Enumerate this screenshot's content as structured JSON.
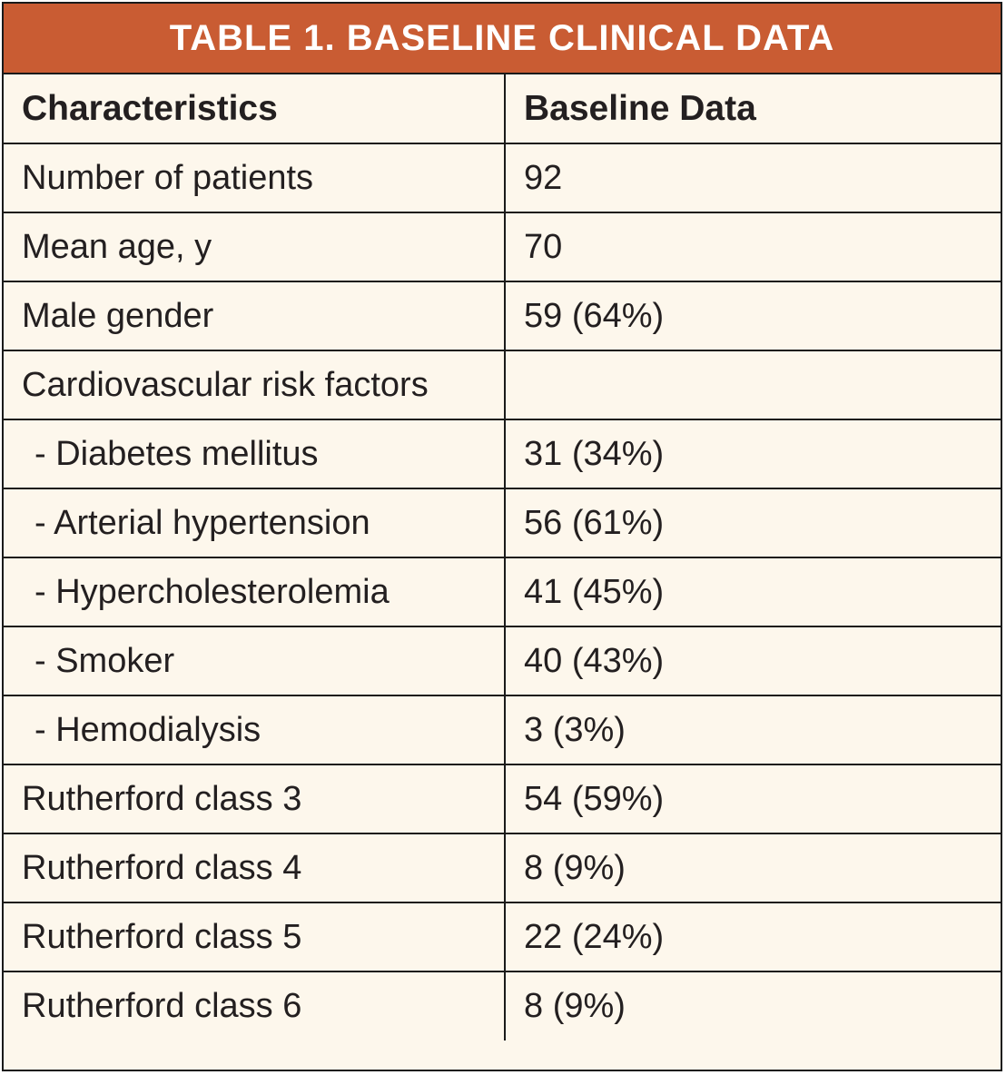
{
  "title": "TABLE 1.  BASELINE CLINICAL DATA",
  "headers": [
    "Characteristics",
    "Baseline Data"
  ],
  "rows": [
    {
      "label": "Number of patients",
      "value": "92"
    },
    {
      "label": "Mean age, y",
      "value": "70"
    },
    {
      "label": "Male gender",
      "value": "59 (64%)"
    },
    {
      "label": "Cardiovascular risk factors",
      "value": ""
    },
    {
      "label": "- Diabetes mellitus",
      "value": "31 (34%)"
    },
    {
      "label": "- Arterial hypertension",
      "value": "56 (61%)"
    },
    {
      "label": "- Hypercholesterolemia",
      "value": "41 (45%)"
    },
    {
      "label": "- Smoker",
      "value": "40 (43%)"
    },
    {
      "label": "- Hemodialysis",
      "value": "3 (3%)"
    },
    {
      "label": "Rutherford class 3",
      "value": "54 (59%)"
    },
    {
      "label": "Rutherford class 4",
      "value": "8 (9%)"
    },
    {
      "label": "Rutherford class 5",
      "value": "22 (24%)"
    },
    {
      "label": "Rutherford class 6",
      "value": "8 (9%)"
    }
  ],
  "colors": {
    "title_bg": "#c95c33",
    "table_bg": "#fdf7ec",
    "border": "#1a1a1a"
  }
}
